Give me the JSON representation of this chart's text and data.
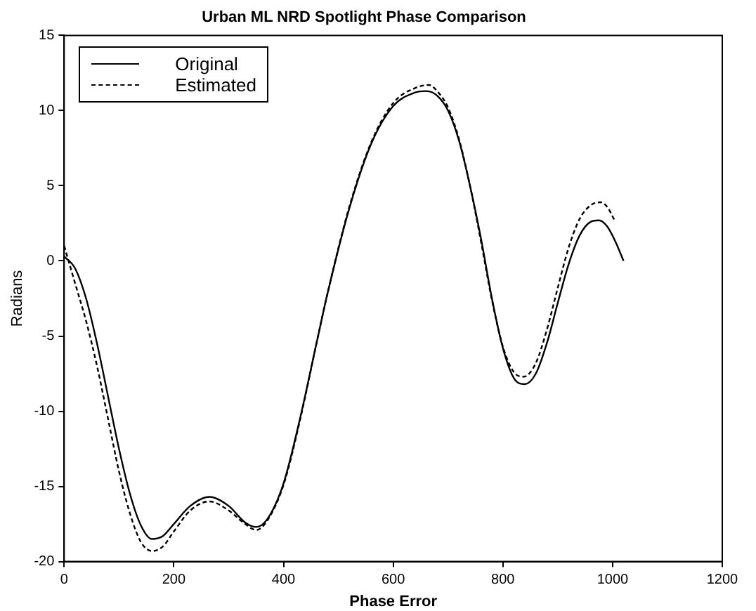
{
  "chart_data": {
    "type": "line",
    "title": "Urban ML NRD Spotlight Phase Comparison",
    "xlabel": "Phase Error",
    "ylabel": "Radians",
    "xlim": [
      0,
      1200
    ],
    "xticks": [
      0,
      200,
      400,
      600,
      800,
      1000,
      1200
    ],
    "ylim": [
      -20,
      15
    ],
    "yticks": [
      -20,
      -15,
      -10,
      -5,
      0,
      5,
      10,
      15
    ],
    "grid": false,
    "legend": "top left",
    "marker": "none",
    "series": [
      {
        "name": "Original",
        "color": "#000000",
        "line_style": "solid",
        "x": [
          0,
          20,
          40,
          60,
          80,
          100,
          120,
          140,
          160,
          180,
          200,
          230,
          265,
          300,
          330,
          350,
          370,
          400,
          430,
          460,
          480,
          520,
          560,
          600,
          640,
          660,
          680,
          700,
          720,
          740,
          760,
          780,
          800,
          820,
          840,
          860,
          880,
          900,
          920,
          940,
          960,
          975,
          990,
          1005,
          1020
        ],
        "values": [
          0.3,
          -0.5,
          -2.5,
          -5.5,
          -9,
          -12.5,
          -15.5,
          -17.6,
          -18.5,
          -18.3,
          -17.5,
          -16.3,
          -15.7,
          -16.3,
          -17.4,
          -17.7,
          -17.2,
          -14.8,
          -10.5,
          -5.5,
          -2.2,
          3.5,
          7.8,
          10.3,
          11.2,
          11.3,
          11,
          10,
          8,
          5,
          1.5,
          -2.5,
          -5.8,
          -7.8,
          -8.2,
          -7.5,
          -5.5,
          -2.8,
          -0.2,
          1.7,
          2.6,
          2.7,
          2.3,
          1.3,
          0
        ]
      },
      {
        "name": "Estimated",
        "color": "#000000",
        "line_style": "dashed",
        "x": [
          0,
          20,
          40,
          60,
          80,
          100,
          120,
          140,
          160,
          180,
          200,
          230,
          265,
          300,
          330,
          350,
          370,
          400,
          430,
          460,
          480,
          520,
          560,
          600,
          640,
          665,
          680,
          700,
          720,
          740,
          760,
          780,
          800,
          820,
          838,
          860,
          880,
          900,
          920,
          940,
          960,
          978,
          990,
          1005
        ],
        "values": [
          1.0,
          -1.5,
          -4,
          -7,
          -10.5,
          -14,
          -16.8,
          -18.7,
          -19.3,
          -19,
          -18,
          -16.6,
          -16,
          -16.6,
          -17.5,
          -17.9,
          -17.3,
          -14.9,
          -10.6,
          -5.5,
          -2.2,
          3.6,
          7.9,
          10.5,
          11.5,
          11.7,
          11.3,
          10.2,
          8.1,
          5,
          1.3,
          -2.6,
          -5.7,
          -7.4,
          -7.7,
          -6.8,
          -4.6,
          -1.8,
          0.9,
          2.8,
          3.7,
          3.9,
          3.6,
          2.6
        ]
      }
    ]
  }
}
